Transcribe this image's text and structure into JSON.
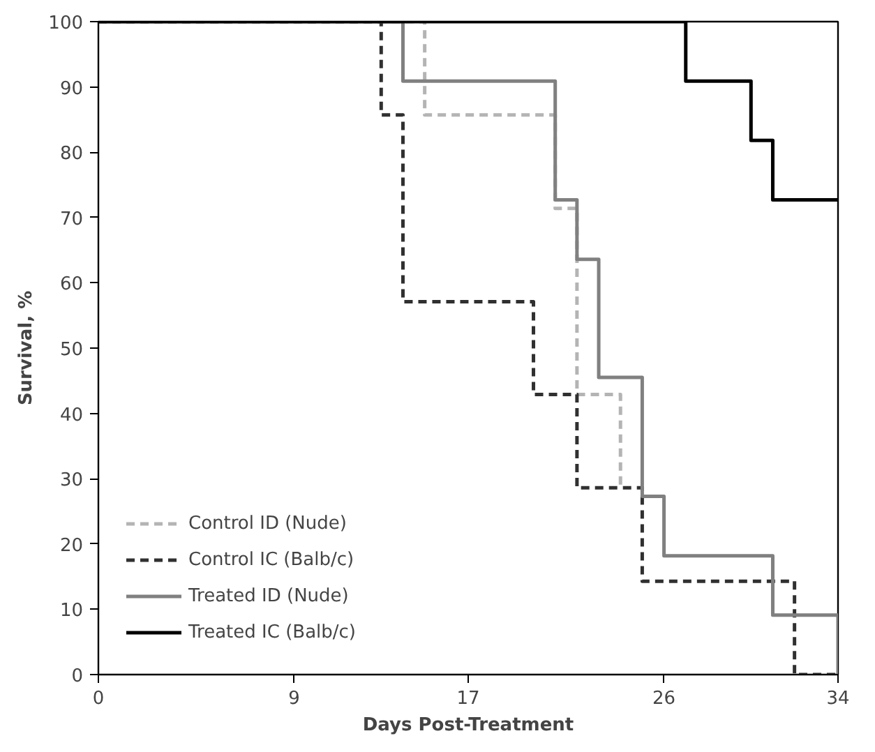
{
  "chart_data": {
    "type": "step",
    "xlabel": "Days Post-Treatment",
    "ylabel": "Survival, %",
    "xlim": [
      0,
      34
    ],
    "xticks": [
      0,
      9,
      17,
      26,
      34
    ],
    "ylim": [
      0,
      100
    ],
    "yticks": [
      0,
      10,
      20,
      30,
      40,
      50,
      60,
      70,
      80,
      90,
      100
    ],
    "grid": false,
    "legend": "bottom left",
    "series": [
      {
        "name": "Control ID (Nude)",
        "color": "#b4b4b4",
        "line_style": "dashed",
        "x": [
          0,
          15,
          21,
          22,
          24
        ],
        "values": [
          100,
          85.7,
          71.4,
          42.9,
          28.6
        ]
      },
      {
        "name": "Control IC (Balb/c)",
        "color": "#303030",
        "line_style": "dashed",
        "x": [
          0,
          13,
          14,
          20,
          22,
          25,
          32,
          34
        ],
        "values": [
          100,
          85.7,
          57.1,
          42.9,
          28.6,
          14.3,
          0,
          0
        ]
      },
      {
        "name": "Treated ID (Nude)",
        "color": "#808080",
        "line_style": "solid",
        "x": [
          0,
          14,
          21,
          22,
          23,
          25,
          26,
          31,
          34
        ],
        "values": [
          100,
          90.9,
          72.7,
          63.6,
          45.5,
          27.3,
          18.2,
          9.1,
          0
        ]
      },
      {
        "name": "Treated IC (Balb/c)",
        "color": "#000000",
        "line_style": "solid",
        "x": [
          0,
          27,
          30,
          31,
          34
        ],
        "values": [
          100,
          90.9,
          81.8,
          72.7,
          72.7
        ]
      }
    ]
  }
}
